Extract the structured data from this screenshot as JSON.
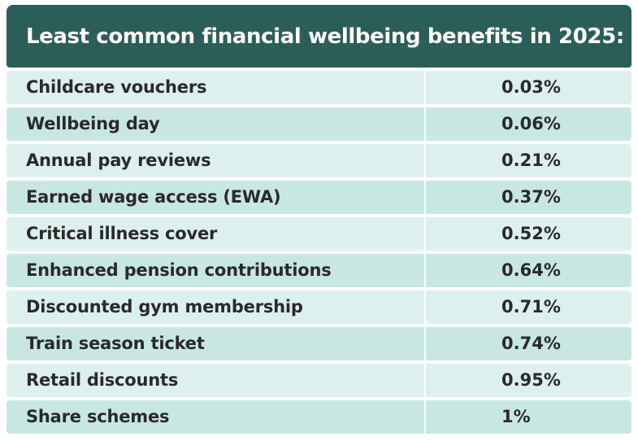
{
  "title": "Least common financial wellbeing benefits in 2025:",
  "colors": {
    "header_bg": "#2c5e59",
    "row_light": "#ddf0ee",
    "row_dark": "#c8e7e3",
    "text": "#2a2a2a"
  },
  "chart_data": {
    "type": "table",
    "title": "Least common financial wellbeing benefits in 2025:",
    "categories": [
      "Childcare vouchers",
      "Wellbeing day",
      "Annual pay reviews",
      "Earned wage access (EWA)",
      "Critical illness cover",
      "Enhanced pension contributions",
      "Discounted gym membership",
      "Train season ticket",
      "Retail discounts",
      "Share schemes"
    ],
    "values": [
      0.03,
      0.06,
      0.21,
      0.37,
      0.52,
      0.64,
      0.71,
      0.74,
      0.95,
      1
    ],
    "value_labels": [
      "0.03%",
      "0.06%",
      "0.21%",
      "0.37%",
      "0.52%",
      "0.64%",
      "0.71%",
      "0.74%",
      "0.95%",
      "1%"
    ],
    "unit": "%"
  }
}
